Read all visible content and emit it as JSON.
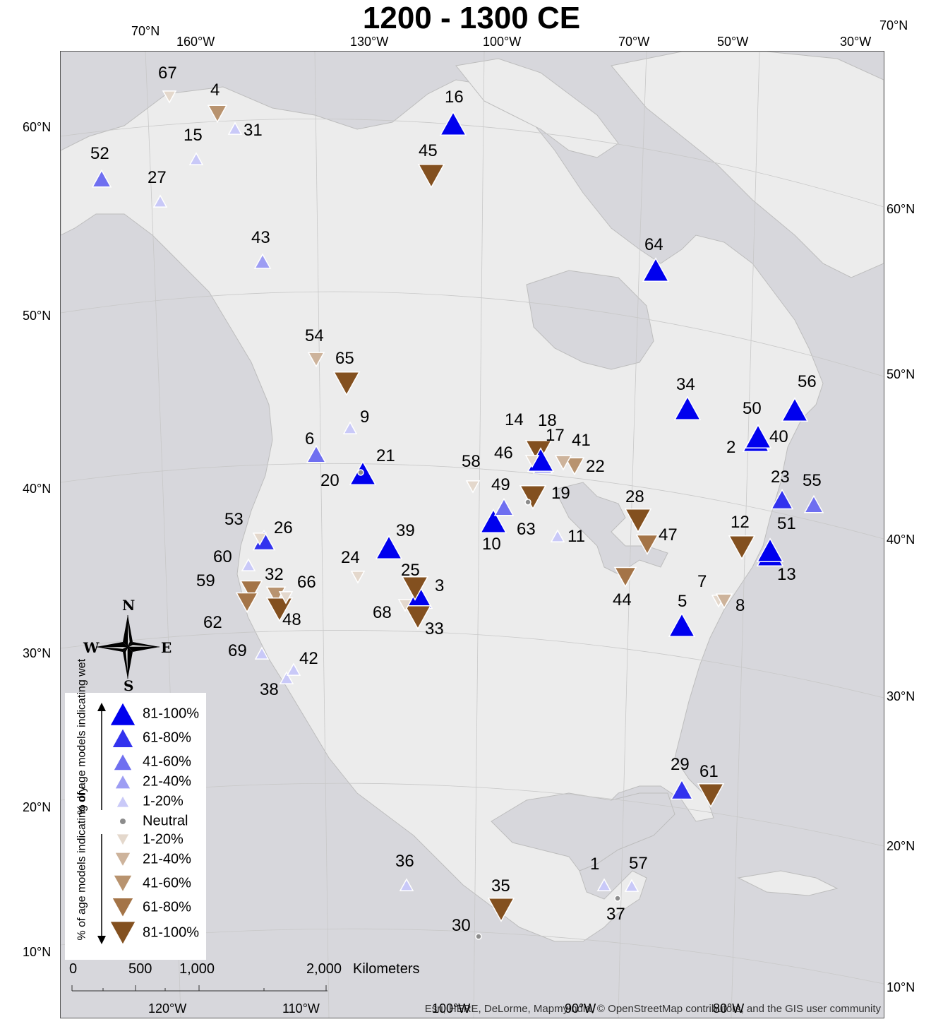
{
  "title": "1200 - 1300 CE",
  "graticule_labels": {
    "top": [
      "70°N",
      "160°W",
      "130°W",
      "100°W",
      "70°W",
      "50°W",
      "30°W",
      "70°N"
    ],
    "left": [
      "60°N",
      "50°N",
      "40°N",
      "30°N",
      "20°N",
      "10°N"
    ],
    "right": [
      "60°N",
      "50°N",
      "40°N",
      "30°N",
      "20°N",
      "10°N"
    ],
    "bottom": [
      "120°W",
      "110°W",
      "100°W",
      "90°W",
      "80°W"
    ]
  },
  "legend": {
    "wet_axis_label": "% of age models indicating wet",
    "dry_axis_label": "% of age models indicating dry",
    "items": [
      {
        "label": "81-100%",
        "kind": "wet",
        "color": "#0000ee"
      },
      {
        "label": "61-80%",
        "kind": "wet",
        "color": "#3333ee"
      },
      {
        "label": "41-60%",
        "kind": "wet",
        "color": "#6f6ff0"
      },
      {
        "label": "21-40%",
        "kind": "wet",
        "color": "#9d9df3"
      },
      {
        "label": "1-20%",
        "kind": "wet",
        "color": "#c9c9f8"
      },
      {
        "label": "Neutral",
        "kind": "neutral",
        "color": "#8c8c8c"
      },
      {
        "label": "1-20%",
        "kind": "dry",
        "color": "#e4d8cc"
      },
      {
        "label": "21-40%",
        "kind": "dry",
        "color": "#cdb39b"
      },
      {
        "label": "41-60%",
        "kind": "dry",
        "color": "#b8936f"
      },
      {
        "label": "61-80%",
        "kind": "dry",
        "color": "#a47447"
      },
      {
        "label": "81-100%",
        "kind": "dry",
        "color": "#83501f"
      }
    ]
  },
  "compass": {
    "n": "N",
    "s": "S",
    "e": "E",
    "w": "W"
  },
  "scale_bar": {
    "labels": [
      "0",
      "500",
      "1,000",
      "2,000"
    ],
    "unit": "Kilometers"
  },
  "attribution": "Esri, HERE, DeLorme, MapmyIndia, © OpenStreetMap contributors, and the GIS user community",
  "sites": [
    {
      "id": "1",
      "kind": "wet",
      "cls": "1-20%"
    },
    {
      "id": "2",
      "kind": "wet",
      "cls": "81-100%"
    },
    {
      "id": "3",
      "kind": "wet",
      "cls": "81-100%"
    },
    {
      "id": "4",
      "kind": "dry",
      "cls": "41-60%"
    },
    {
      "id": "5",
      "kind": "wet",
      "cls": "81-100%"
    },
    {
      "id": "6",
      "kind": "wet",
      "cls": "41-60%"
    },
    {
      "id": "7",
      "kind": "dry",
      "cls": "1-20%"
    },
    {
      "id": "8",
      "kind": "dry",
      "cls": "21-40%"
    },
    {
      "id": "9",
      "kind": "wet",
      "cls": "1-20%"
    },
    {
      "id": "10",
      "kind": "wet",
      "cls": "81-100%"
    },
    {
      "id": "11",
      "kind": "wet",
      "cls": "1-20%"
    },
    {
      "id": "12",
      "kind": "dry",
      "cls": "81-100%"
    },
    {
      "id": "13",
      "kind": "wet",
      "cls": "81-100%"
    },
    {
      "id": "14",
      "kind": "dry",
      "cls": "81-100%"
    },
    {
      "id": "15",
      "kind": "wet",
      "cls": "1-20%"
    },
    {
      "id": "16",
      "kind": "wet",
      "cls": "81-100%"
    },
    {
      "id": "17",
      "kind": "wet",
      "cls": "41-60%"
    },
    {
      "id": "18",
      "kind": "wet",
      "cls": "81-100%"
    },
    {
      "id": "19",
      "kind": "dry",
      "cls": "81-100%"
    },
    {
      "id": "20",
      "kind": "wet",
      "cls": "81-100%"
    },
    {
      "id": "21",
      "kind": "neutral",
      "cls": "Neutral"
    },
    {
      "id": "22",
      "kind": "dry",
      "cls": "41-60%"
    },
    {
      "id": "23",
      "kind": "wet",
      "cls": "61-80%"
    },
    {
      "id": "24",
      "kind": "dry",
      "cls": "1-20%"
    },
    {
      "id": "25",
      "kind": "dry",
      "cls": "81-100%"
    },
    {
      "id": "26",
      "kind": "wet",
      "cls": "61-80%"
    },
    {
      "id": "27",
      "kind": "wet",
      "cls": "1-20%"
    },
    {
      "id": "28",
      "kind": "dry",
      "cls": "81-100%"
    },
    {
      "id": "29",
      "kind": "wet",
      "cls": "61-80%"
    },
    {
      "id": "30",
      "kind": "neutral",
      "cls": "Neutral"
    },
    {
      "id": "31",
      "kind": "wet",
      "cls": "1-20%"
    },
    {
      "id": "32",
      "kind": "dry",
      "cls": "41-60%"
    },
    {
      "id": "33",
      "kind": "dry",
      "cls": "81-100%"
    },
    {
      "id": "34",
      "kind": "wet",
      "cls": "81-100%"
    },
    {
      "id": "35",
      "kind": "dry",
      "cls": "81-100%"
    },
    {
      "id": "36",
      "kind": "wet",
      "cls": "1-20%"
    },
    {
      "id": "37",
      "kind": "neutral",
      "cls": "Neutral"
    },
    {
      "id": "38",
      "kind": "wet",
      "cls": "1-20%"
    },
    {
      "id": "39",
      "kind": "wet",
      "cls": "81-100%"
    },
    {
      "id": "40",
      "kind": "neutral",
      "cls": "Neutral"
    },
    {
      "id": "41",
      "kind": "dry",
      "cls": "21-40%"
    },
    {
      "id": "42",
      "kind": "wet",
      "cls": "1-20%"
    },
    {
      "id": "43",
      "kind": "wet",
      "cls": "21-40%"
    },
    {
      "id": "44",
      "kind": "dry",
      "cls": "61-80%"
    },
    {
      "id": "45",
      "kind": "dry",
      "cls": "81-100%"
    },
    {
      "id": "46",
      "kind": "dry",
      "cls": "1-20%"
    },
    {
      "id": "47",
      "kind": "dry",
      "cls": "61-80%"
    },
    {
      "id": "48",
      "kind": "dry",
      "cls": "81-100%"
    },
    {
      "id": "49",
      "kind": "wet",
      "cls": "41-60%"
    },
    {
      "id": "50",
      "kind": "wet",
      "cls": "81-100%"
    },
    {
      "id": "51",
      "kind": "wet",
      "cls": "81-100%"
    },
    {
      "id": "52",
      "kind": "wet",
      "cls": "41-60%"
    },
    {
      "id": "53",
      "kind": "dry",
      "cls": "1-20%"
    },
    {
      "id": "54",
      "kind": "dry",
      "cls": "21-40%"
    },
    {
      "id": "55",
      "kind": "wet",
      "cls": "41-60%"
    },
    {
      "id": "56",
      "kind": "wet",
      "cls": "81-100%"
    },
    {
      "id": "57",
      "kind": "wet",
      "cls": "1-20%"
    },
    {
      "id": "58",
      "kind": "dry",
      "cls": "1-20%"
    },
    {
      "id": "59",
      "kind": "dry",
      "cls": "61-80%"
    },
    {
      "id": "60",
      "kind": "wet",
      "cls": "1-20%"
    },
    {
      "id": "61",
      "kind": "dry",
      "cls": "81-100%"
    },
    {
      "id": "62",
      "kind": "dry",
      "cls": "61-80%"
    },
    {
      "id": "63",
      "kind": "neutral",
      "cls": "Neutral"
    },
    {
      "id": "64",
      "kind": "wet",
      "cls": "81-100%"
    },
    {
      "id": "65",
      "kind": "dry",
      "cls": "81-100%"
    },
    {
      "id": "66",
      "kind": "dry",
      "cls": "1-20%"
    },
    {
      "id": "67",
      "kind": "dry",
      "cls": "1-20%"
    },
    {
      "id": "68",
      "kind": "dry",
      "cls": "1-20%"
    },
    {
      "id": "69",
      "kind": "wet",
      "cls": "1-20%"
    }
  ]
}
